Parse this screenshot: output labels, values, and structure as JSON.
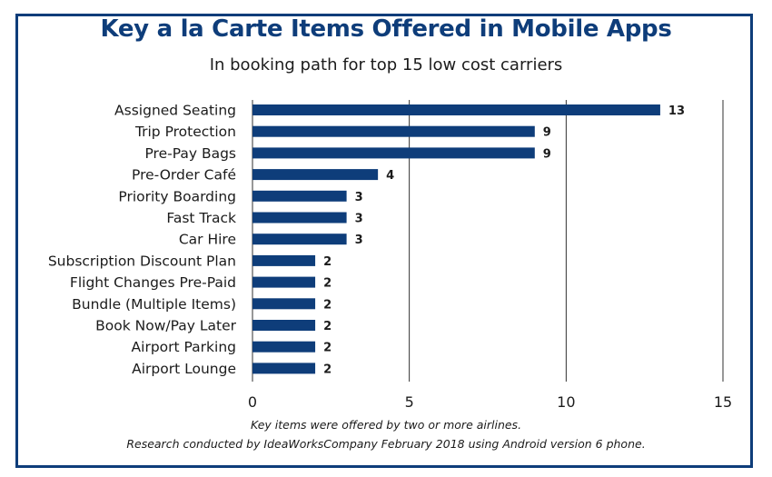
{
  "chart_data": {
    "type": "bar",
    "orientation": "horizontal",
    "title": "Key a la Carte Items Offered in Mobile Apps",
    "subtitle": "In booking path for top 15 low cost carriers",
    "categories": [
      "Assigned Seating",
      "Trip Protection",
      "Pre-Pay Bags",
      "Pre-Order Café",
      "Priority Boarding",
      "Fast Track",
      "Car Hire",
      "Subscription Discount Plan",
      "Flight Changes Pre-Paid",
      "Bundle (Multiple Items)",
      "Book Now/Pay Later",
      "Airport Parking",
      "Airport Lounge"
    ],
    "values": [
      13,
      9,
      9,
      4,
      3,
      3,
      3,
      2,
      2,
      2,
      2,
      2,
      2
    ],
    "xlim": [
      0,
      15
    ],
    "xticks": [
      0,
      5,
      10,
      15
    ],
    "grid": true,
    "bar_color": "#0e3d7a",
    "frame_color": "#0e3d7a",
    "footnotes": [
      "Key items were offered by two or more airlines.",
      "Research conducted by IdeaWorksCompany February 2018 using Android version 6 phone."
    ]
  }
}
